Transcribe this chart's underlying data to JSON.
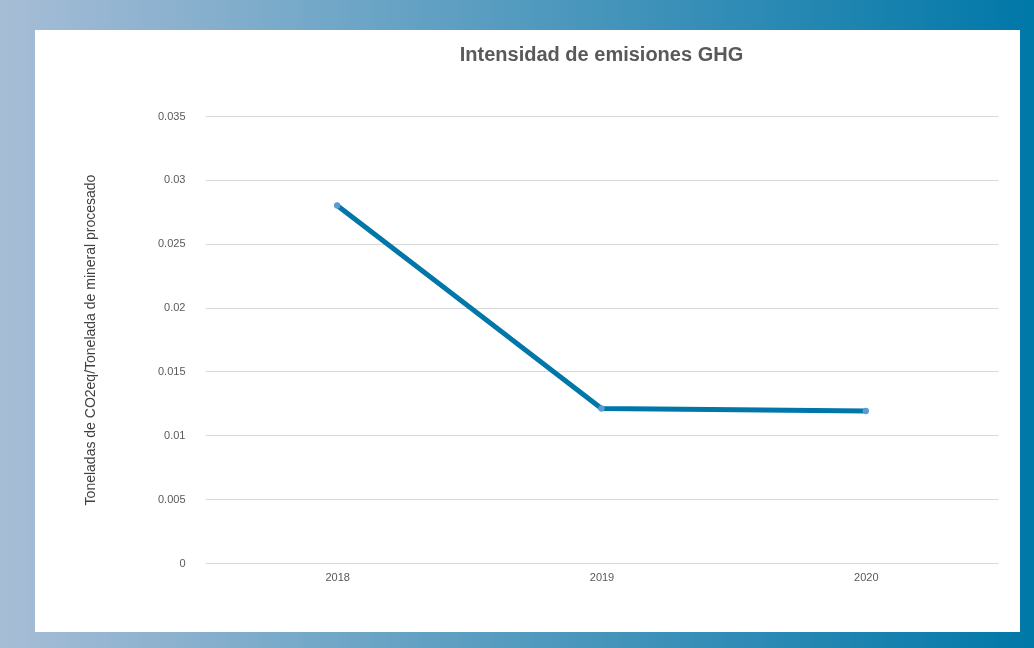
{
  "chart_data": {
    "type": "line",
    "title": "Intensidad de emisiones GHG",
    "ylabel": "Toneladas de CO2eq/Tonelada de mineral procesado",
    "categories": [
      "2018",
      "2019",
      "2020"
    ],
    "series": [
      {
        "color": "#0077a8",
        "values": [
          0.028,
          0.0121,
          0.0119
        ]
      }
    ],
    "ylim": [
      0,
      0.035
    ],
    "yticks": [
      0,
      0.005,
      0.01,
      0.015,
      0.02,
      0.025,
      0.03,
      0.035
    ],
    "grid": "y",
    "marker": "circle"
  }
}
